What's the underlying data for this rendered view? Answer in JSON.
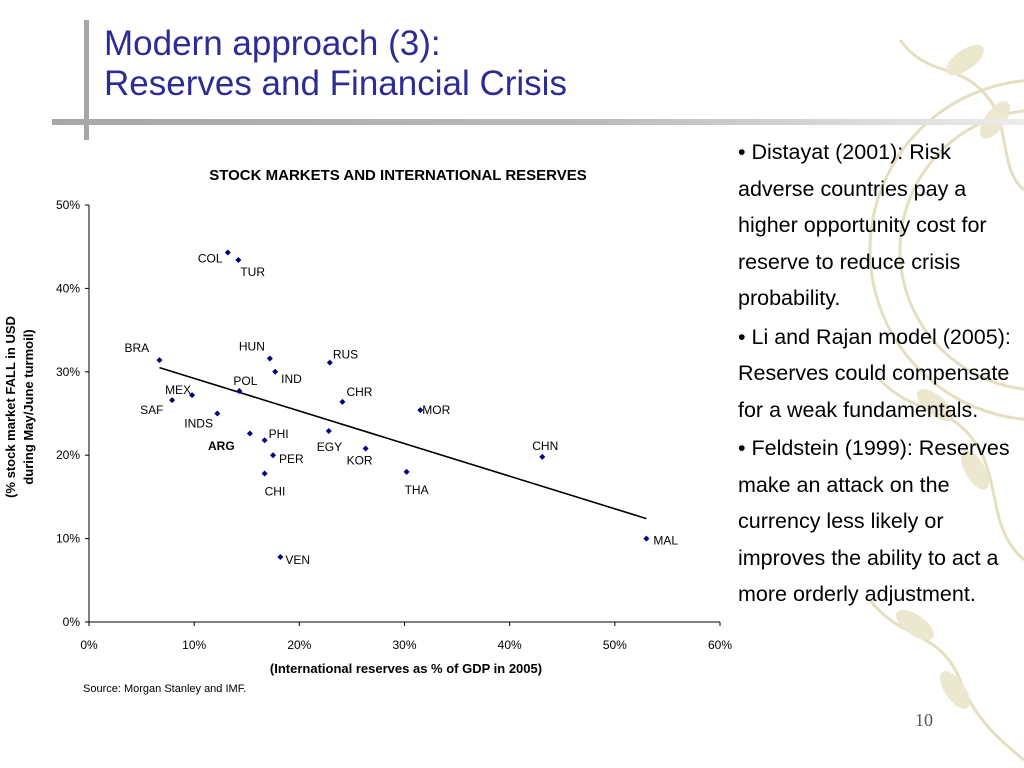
{
  "slide": {
    "title_line1": "Modern approach (3):",
    "title_line2": "Reserves and Financial Crisis",
    "page_number": "10",
    "accent_color": "#2d2c94",
    "bullets": [
      "• Distayat (2001): Risk adverse countries pay a higher opportunity cost for reserve to reduce crisis probability.",
      "• Li and Rajan model (2005): Reserves could compensate for a weak fundamentals.",
      "• Feldstein (1999): Reserves make an attack on the currency less likely or improves the ability to act a more orderly adjustment."
    ]
  },
  "chart_data": {
    "type": "scatter",
    "title": "STOCK MARKETS AND INTERNATIONAL RESERVES",
    "xlabel": "(International reserves as % of GDP in 2005)",
    "ylabel": "(% stock market FALL in USD during May/June turmoil)",
    "ylabel_lines": [
      "(% stock market FALL in USD",
      "during May/June turmoil)"
    ],
    "source": "Source: Morgan Stanley and IMF.",
    "xlim": [
      0,
      60
    ],
    "ylim": [
      0,
      50
    ],
    "x_ticks": [
      "0%",
      "10%",
      "20%",
      "30%",
      "40%",
      "50%",
      "60%"
    ],
    "y_ticks": [
      "0%",
      "10%",
      "20%",
      "30%",
      "40%",
      "50%"
    ],
    "grid": false,
    "legend": "none",
    "marker_color": "#000080",
    "points": [
      {
        "label": "COL",
        "x": 13.2,
        "y": 44.3
      },
      {
        "label": "TUR",
        "x": 14.2,
        "y": 43.4
      },
      {
        "label": "BRA",
        "x": 6.7,
        "y": 31.4
      },
      {
        "label": "HUN",
        "x": 17.2,
        "y": 31.6
      },
      {
        "label": "RUS",
        "x": 22.9,
        "y": 31.1
      },
      {
        "label": "IND",
        "x": 17.7,
        "y": 30.0
      },
      {
        "label": "POL",
        "x": 14.3,
        "y": 27.7
      },
      {
        "label": "CHR",
        "x": 24.1,
        "y": 26.4
      },
      {
        "label": "MEX",
        "x": 9.8,
        "y": 27.2
      },
      {
        "label": "SAF",
        "x": 7.9,
        "y": 26.6
      },
      {
        "label": "INDS",
        "x": 12.2,
        "y": 25.0
      },
      {
        "label": "MOR",
        "x": 31.5,
        "y": 25.4
      },
      {
        "label": "",
        "x": 15.3,
        "y": 22.6
      },
      {
        "label": "PHI",
        "x": 16.7,
        "y": 21.8
      },
      {
        "label": "ARG",
        "x": 0,
        "y": 0,
        "annotation_only": true
      },
      {
        "label": "EGY",
        "x": 22.8,
        "y": 22.9
      },
      {
        "label": "KOR",
        "x": 26.3,
        "y": 20.8
      },
      {
        "label": "CHN",
        "x": 43.1,
        "y": 19.8
      },
      {
        "label": "PER",
        "x": 17.5,
        "y": 20.0
      },
      {
        "label": "CHI",
        "x": 16.7,
        "y": 17.8
      },
      {
        "label": "THA",
        "x": 30.2,
        "y": 18.0
      },
      {
        "label": "MAL",
        "x": 53.0,
        "y": 10.0
      },
      {
        "label": "VEN",
        "x": 18.2,
        "y": 7.8
      }
    ],
    "trendline": {
      "x": [
        6.7,
        53.0
      ],
      "y": [
        30.5,
        12.4
      ]
    }
  }
}
